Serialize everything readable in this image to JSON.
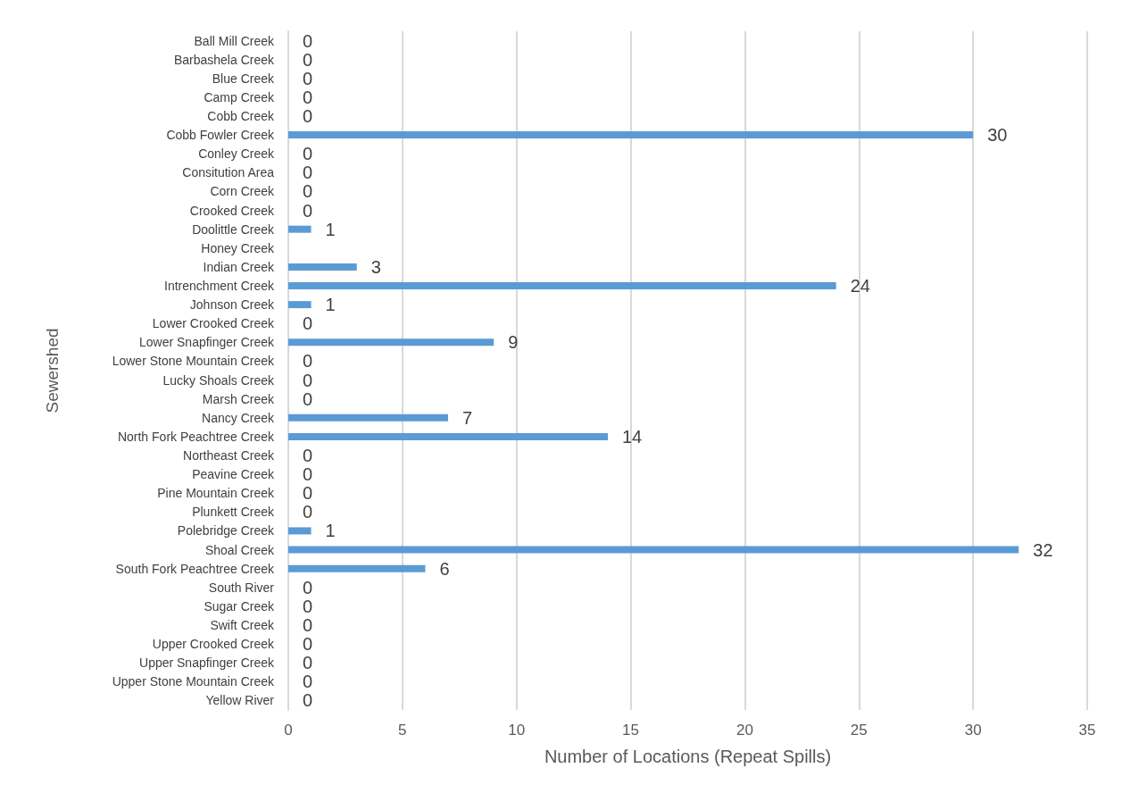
{
  "chart_data": {
    "type": "bar",
    "orientation": "horizontal",
    "xlabel": "Number of Locations (Repeat Spills)",
    "ylabel": "Sewershed",
    "categories": [
      "Ball Mill Creek",
      "Barbashela Creek",
      "Blue Creek",
      "Camp Creek",
      "Cobb Creek",
      "Cobb Fowler Creek",
      "Conley Creek",
      "Consitution Area",
      "Corn Creek",
      "Crooked Creek",
      "Doolittle Creek",
      "Honey Creek",
      "Indian Creek",
      "Intrenchment Creek",
      "Johnson Creek",
      "Lower Crooked Creek",
      "Lower Snapfinger Creek",
      "Lower Stone Mountain Creek",
      "Lucky Shoals Creek",
      "Marsh Creek",
      "Nancy Creek",
      "North Fork Peachtree Creek",
      "Northeast Creek",
      "Peavine Creek",
      "Pine Mountain Creek",
      "Plunkett Creek",
      "Polebridge Creek",
      "Shoal Creek",
      "South Fork Peachtree Creek",
      "South River",
      "Sugar Creek",
      "Swift Creek",
      "Upper Crooked Creek",
      "Upper Snapfinger Creek",
      "Upper Stone Mountain Creek",
      "Yellow River"
    ],
    "values": [
      0,
      0,
      0,
      0,
      0,
      30,
      0,
      0,
      0,
      0,
      1,
      null,
      3,
      24,
      1,
      0,
      9,
      0,
      0,
      0,
      7,
      14,
      0,
      0,
      0,
      0,
      1,
      32,
      6,
      0,
      0,
      0,
      0,
      0,
      0,
      0
    ],
    "color": "#5b9bd5",
    "data_labels": true,
    "xlim": [
      0,
      35
    ],
    "xticks": [
      0,
      5,
      10,
      15,
      20,
      25,
      30,
      35
    ],
    "grid": "x"
  }
}
